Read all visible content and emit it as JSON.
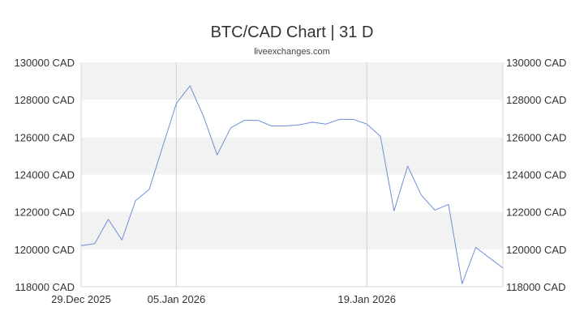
{
  "chart_data": {
    "type": "line",
    "title": "BTC/CAD Chart | 31 D",
    "subtitle": "liveexchanges.com",
    "xlabel": "",
    "ylabel": "",
    "y_unit": "CAD",
    "ylim": [
      118000,
      130000
    ],
    "y_ticks": [
      118000,
      120000,
      122000,
      124000,
      126000,
      128000,
      130000
    ],
    "y_tick_labels": [
      "118000 CAD",
      "120000 CAD",
      "122000 CAD",
      "124000 CAD",
      "126000 CAD",
      "128000 CAD",
      "130000 CAD"
    ],
    "xlim": [
      "2025-12-29",
      "2026-01-29"
    ],
    "x_ticks": [
      "2025-12-29",
      "2026-01-05",
      "2026-01-19"
    ],
    "x_tick_labels": [
      "29.Dec 2025",
      "05.Jan 2026",
      "19.Jan 2026"
    ],
    "bands": "alternating grey and white horizontal bands every 2000 CAD",
    "vertical_gridlines_at": [
      "2026-01-05",
      "2026-01-19"
    ],
    "axes": "y-axis labels on both left and right",
    "line_color": "#6f8fd8",
    "band_color": "#f2f2f2",
    "series": [
      {
        "x": [
          "2025-12-29",
          "2025-12-30",
          "2025-12-31",
          "2026-01-01",
          "2026-01-02",
          "2026-01-03",
          "2026-01-04",
          "2026-01-05",
          "2026-01-06",
          "2026-01-07",
          "2026-01-08",
          "2026-01-09",
          "2026-01-10",
          "2026-01-11",
          "2026-01-12",
          "2026-01-13",
          "2026-01-14",
          "2026-01-15",
          "2026-01-16",
          "2026-01-17",
          "2026-01-18",
          "2026-01-19",
          "2026-01-20",
          "2026-01-21",
          "2026-01-22",
          "2026-01-23",
          "2026-01-24",
          "2026-01-25",
          "2026-01-26",
          "2026-01-27",
          "2026-01-28",
          "2026-01-29"
        ],
        "values": [
          120200,
          120300,
          121600,
          120500,
          122600,
          123200,
          125500,
          127800,
          128750,
          127100,
          125050,
          126500,
          126900,
          126900,
          126600,
          126600,
          126650,
          126800,
          126700,
          126950,
          126950,
          126700,
          126050,
          122050,
          124450,
          122900,
          122100,
          122400,
          118150,
          120100,
          119550,
          119000
        ]
      }
    ]
  }
}
